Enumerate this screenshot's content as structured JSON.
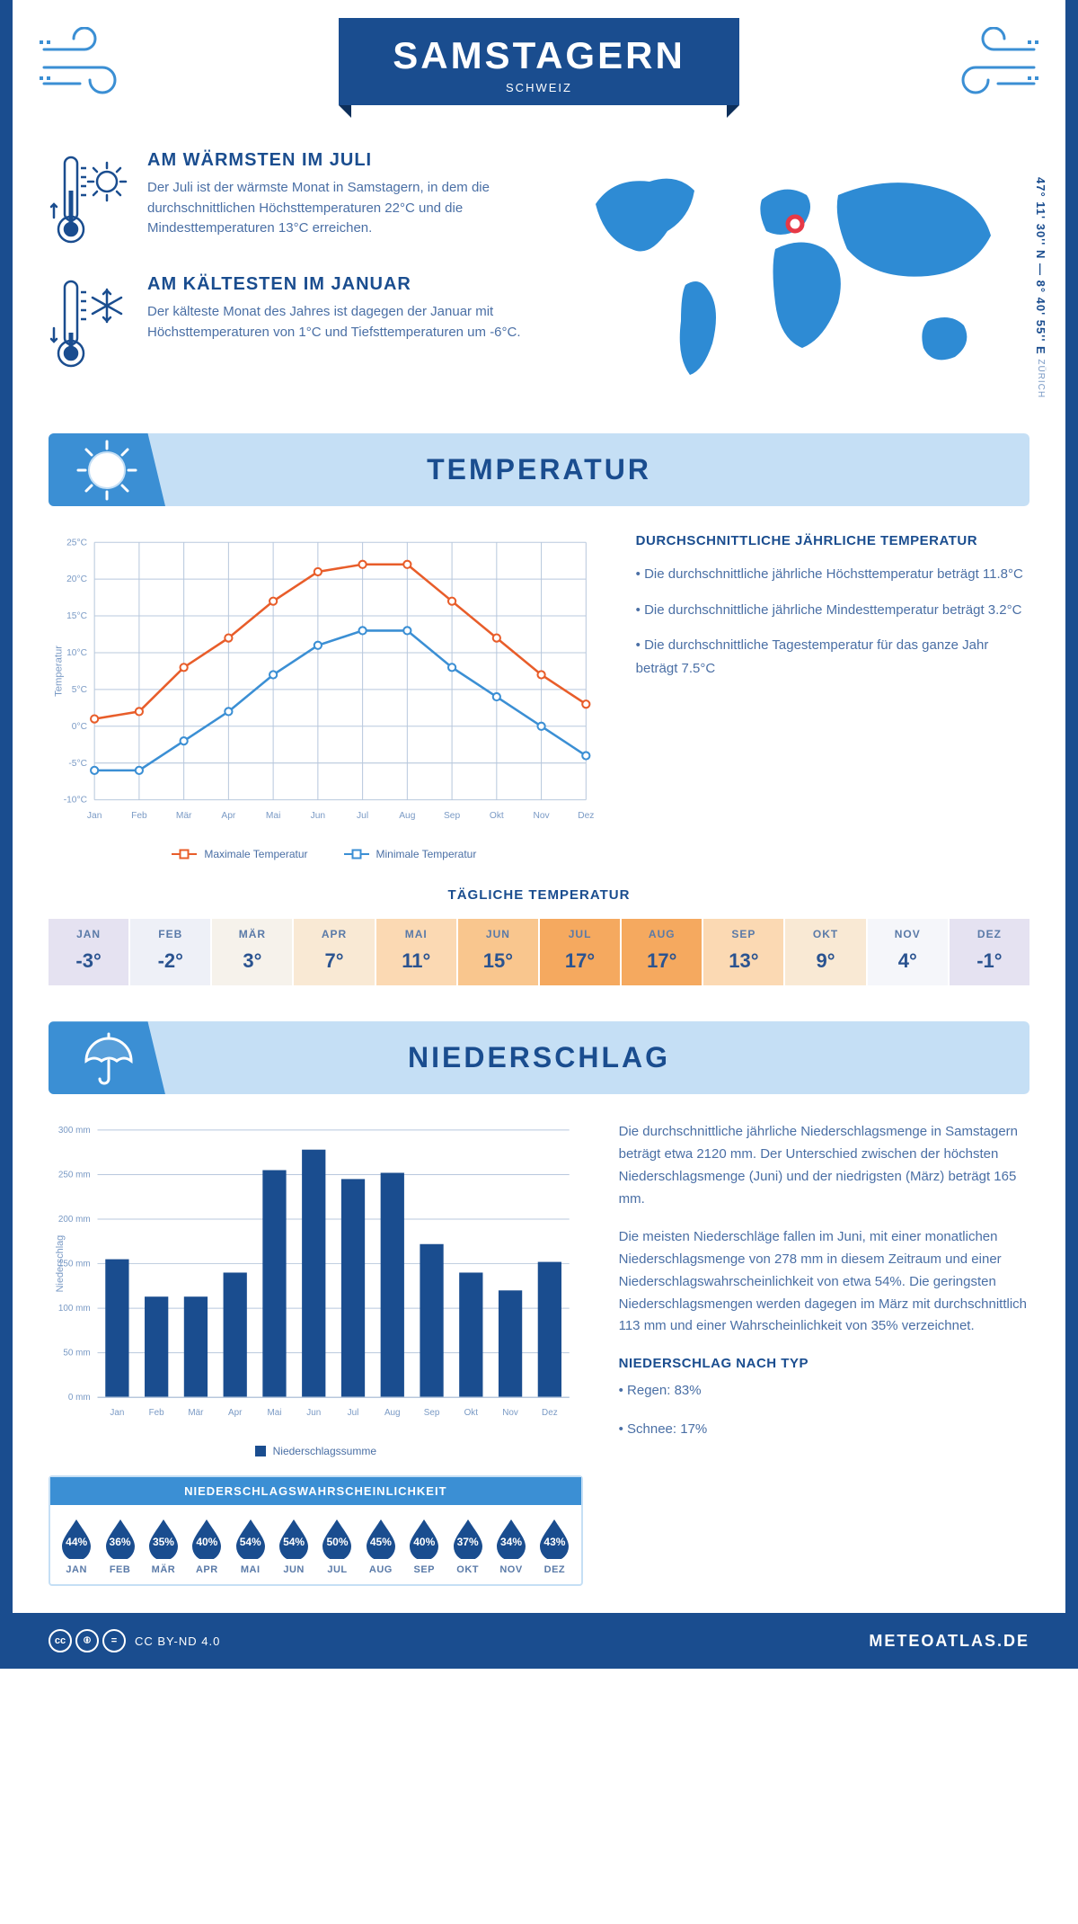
{
  "header": {
    "title": "SAMSTAGERN",
    "subtitle": "SCHWEIZ"
  },
  "coords": {
    "main": "47° 11' 30'' N — 8° 40' 55'' E",
    "sub": "ZÜRICH"
  },
  "facts": {
    "warm": {
      "title": "AM WÄRMSTEN IM JULI",
      "text": "Der Juli ist der wärmste Monat in Samstagern, in dem die durchschnittlichen Höchsttemperaturen 22°C und die Mindesttemperaturen 13°C erreichen."
    },
    "cold": {
      "title": "AM KÄLTESTEN IM JANUAR",
      "text": "Der kälteste Monat des Jahres ist dagegen der Januar mit Höchsttemperaturen von 1°C und Tiefsttemperaturen um -6°C."
    }
  },
  "temp_section": {
    "title": "TEMPERATUR",
    "desc_title": "DURCHSCHNITTLICHE JÄHRLICHE TEMPERATUR",
    "desc1": "• Die durchschnittliche jährliche Höchsttemperatur beträgt 11.8°C",
    "desc2": "• Die durchschnittliche jährliche Mindesttemperatur beträgt 3.2°C",
    "desc3": "• Die durchschnittliche Tagestemperatur für das ganze Jahr beträgt 7.5°C",
    "chart": {
      "type": "line",
      "months": [
        "Jan",
        "Feb",
        "Mär",
        "Apr",
        "Mai",
        "Jun",
        "Jul",
        "Aug",
        "Sep",
        "Okt",
        "Nov",
        "Dez"
      ],
      "max_values": [
        1,
        2,
        8,
        12,
        17,
        21,
        22,
        22,
        17,
        12,
        7,
        3
      ],
      "min_values": [
        -6,
        -6,
        -2,
        2,
        7,
        11,
        13,
        13,
        8,
        4,
        0,
        -4
      ],
      "max_color": "#e85d2a",
      "min_color": "#3b8fd4",
      "grid_color": "#b8c8dd",
      "ylim": [
        -10,
        25
      ],
      "ytick_step": 5,
      "ylabel": "Temperatur",
      "legend_max": "Maximale Temperatur",
      "legend_min": "Minimale Temperatur"
    },
    "daily": {
      "title": "TÄGLICHE TEMPERATUR",
      "months": [
        "JAN",
        "FEB",
        "MÄR",
        "APR",
        "MAI",
        "JUN",
        "JUL",
        "AUG",
        "SEP",
        "OKT",
        "NOV",
        "DEZ"
      ],
      "values": [
        "-3°",
        "-2°",
        "3°",
        "7°",
        "11°",
        "15°",
        "17°",
        "17°",
        "13°",
        "9°",
        "4°",
        "-1°"
      ],
      "colors": [
        "#e5e2f1",
        "#eef0f7",
        "#f6f2eb",
        "#f9e9d4",
        "#fbd9b3",
        "#f9c68e",
        "#f5a95f",
        "#f5a95f",
        "#fbd9b3",
        "#f9e9d4",
        "#f5f6fa",
        "#e5e2f1"
      ]
    }
  },
  "precip_section": {
    "title": "NIEDERSCHLAG",
    "chart": {
      "type": "bar",
      "months": [
        "Jan",
        "Feb",
        "Mär",
        "Apr",
        "Mai",
        "Jun",
        "Jul",
        "Aug",
        "Sep",
        "Okt",
        "Nov",
        "Dez"
      ],
      "values": [
        155,
        113,
        113,
        140,
        255,
        278,
        245,
        252,
        172,
        140,
        120,
        152
      ],
      "bar_color": "#1a4d8f",
      "grid_color": "#b8c8dd",
      "ylim": [
        0,
        300
      ],
      "ytick_step": 50,
      "ylabel": "Niederschlag",
      "legend": "Niederschlagssumme"
    },
    "desc1": "Die durchschnittliche jährliche Niederschlagsmenge in Samstagern beträgt etwa 2120 mm. Der Unterschied zwischen der höchsten Niederschlagsmenge (Juni) und der niedrigsten (März) beträgt 165 mm.",
    "desc2": "Die meisten Niederschläge fallen im Juni, mit einer monatlichen Niederschlagsmenge von 278 mm in diesem Zeitraum und einer Niederschlagswahrscheinlichkeit von etwa 54%. Die geringsten Niederschlagsmengen werden dagegen im März mit durchschnittlich 113 mm und einer Wahrscheinlichkeit von 35% verzeichnet.",
    "type_title": "NIEDERSCHLAG NACH TYP",
    "type1": "• Regen: 83%",
    "type2": "• Schnee: 17%",
    "prob": {
      "title": "NIEDERSCHLAGSWAHRSCHEINLICHKEIT",
      "months": [
        "JAN",
        "FEB",
        "MÄR",
        "APR",
        "MAI",
        "JUN",
        "JUL",
        "AUG",
        "SEP",
        "OKT",
        "NOV",
        "DEZ"
      ],
      "values": [
        "44%",
        "36%",
        "35%",
        "40%",
        "54%",
        "54%",
        "50%",
        "45%",
        "40%",
        "37%",
        "34%",
        "43%"
      ],
      "drop_color": "#1a4d8f"
    }
  },
  "footer": {
    "license": "CC BY-ND 4.0",
    "brand": "METEOATLAS.DE"
  }
}
